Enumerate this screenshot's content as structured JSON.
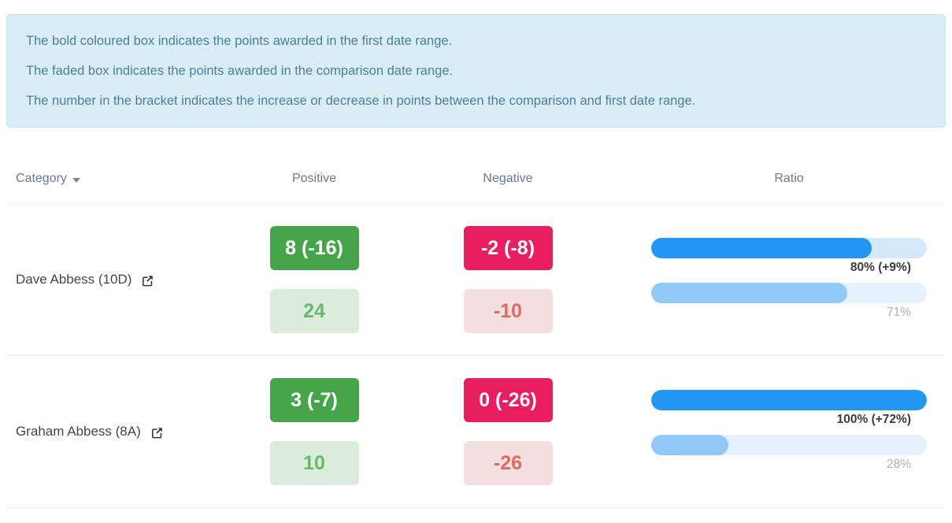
{
  "info_box": {
    "lines": [
      "The bold coloured box indicates the points awarded in the first date range.",
      "The faded box indicates the points awarded in the comparison date range.",
      "The number in the bracket indicates the increase or decrease in points between the comparison and first date range."
    ]
  },
  "table": {
    "headers": {
      "category": "Category",
      "positive": "Positive",
      "negative": "Negative",
      "ratio": "Ratio"
    },
    "rows": [
      {
        "name": "Dave Abbess (10D)",
        "positive_current": "8 (-16)",
        "positive_comparison": "24",
        "negative_current": "-2 (-8)",
        "negative_comparison": "-10",
        "ratio_current_pct": 80,
        "ratio_current_label": "80% (+9%)",
        "ratio_comparison_pct": 71,
        "ratio_comparison_label": "71%"
      },
      {
        "name": "Graham Abbess (8A)",
        "positive_current": "3 (-7)",
        "positive_comparison": "10",
        "negative_current": "0 (-26)",
        "negative_comparison": "-26",
        "ratio_current_pct": 100,
        "ratio_current_label": "100% (+72%)",
        "ratio_comparison_pct": 28,
        "ratio_comparison_label": "28%"
      }
    ]
  },
  "icons": {
    "sort": "caret-down-icon",
    "row_link": "external-link-icon"
  },
  "colors": {
    "info_bg": "#d9edf7",
    "info_border": "#c4e1ef",
    "info_text": "#4d7e9c",
    "header_text": "#68798b",
    "positive_bold_bg": "#46a54b",
    "positive_faded_bg": "#dcecdb",
    "positive_faded_text": "#67ba6c",
    "negative_bold_bg": "#e91d5f",
    "negative_faded_bg": "#f2e0e1",
    "negative_faded_text": "#df6a5e",
    "bar_current_fill": "#2196f3",
    "bar_current_track": "#d4e8fb",
    "bar_comparison_fill": "#90c8f8",
    "bar_comparison_track": "#e5f1fd",
    "bar_label_dark": "#3b3b3b",
    "bar_label_gray": "#a7aeb5"
  }
}
